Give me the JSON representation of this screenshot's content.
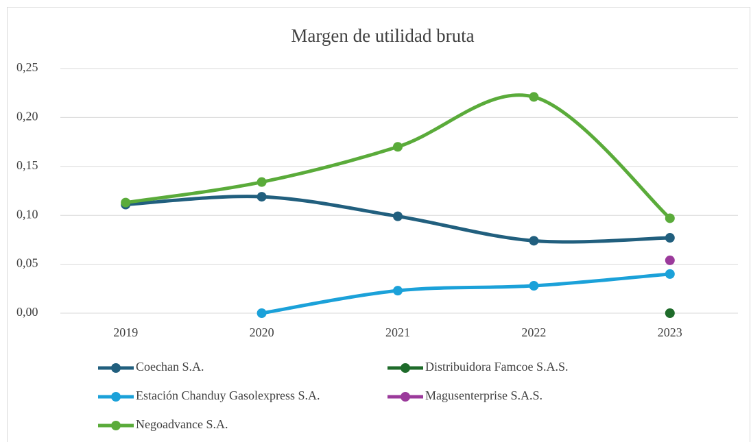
{
  "chart_data": {
    "type": "line",
    "title": "Margen de utilidad bruta",
    "categories": [
      "2019",
      "2020",
      "2021",
      "2022",
      "2023"
    ],
    "series": [
      {
        "name": "Coechan S.A.",
        "color": "#215f7e",
        "values": [
          0.111,
          0.119,
          0.099,
          0.074,
          0.077
        ]
      },
      {
        "name": "Distribuidora Famcoe S.A.S.",
        "color": "#1e6b2a",
        "values": [
          null,
          null,
          null,
          null,
          0.0
        ]
      },
      {
        "name": "Estación Chanduy Gasolexpress S.A.",
        "color": "#1ba1d9",
        "values": [
          null,
          0.0,
          0.023,
          0.028,
          0.04
        ]
      },
      {
        "name": "Magusenterprise S.A.S.",
        "color": "#9b3a9b",
        "values": [
          null,
          null,
          null,
          null,
          0.054
        ]
      },
      {
        "name": "Negoadvance S.A.",
        "color": "#5aab3a",
        "values": [
          0.113,
          0.134,
          0.17,
          0.221,
          0.097
        ]
      }
    ],
    "ylim": [
      0,
      0.25
    ],
    "yticks": [
      {
        "value": 0,
        "label": "0,00"
      },
      {
        "value": 0.05,
        "label": "0,05"
      },
      {
        "value": 0.1,
        "label": "0,10"
      },
      {
        "value": 0.15,
        "label": "0,15"
      },
      {
        "value": 0.2,
        "label": "0,20"
      },
      {
        "value": 0.25,
        "label": "0,25"
      }
    ],
    "smooth": true,
    "grid": true,
    "legend": "bottom"
  }
}
